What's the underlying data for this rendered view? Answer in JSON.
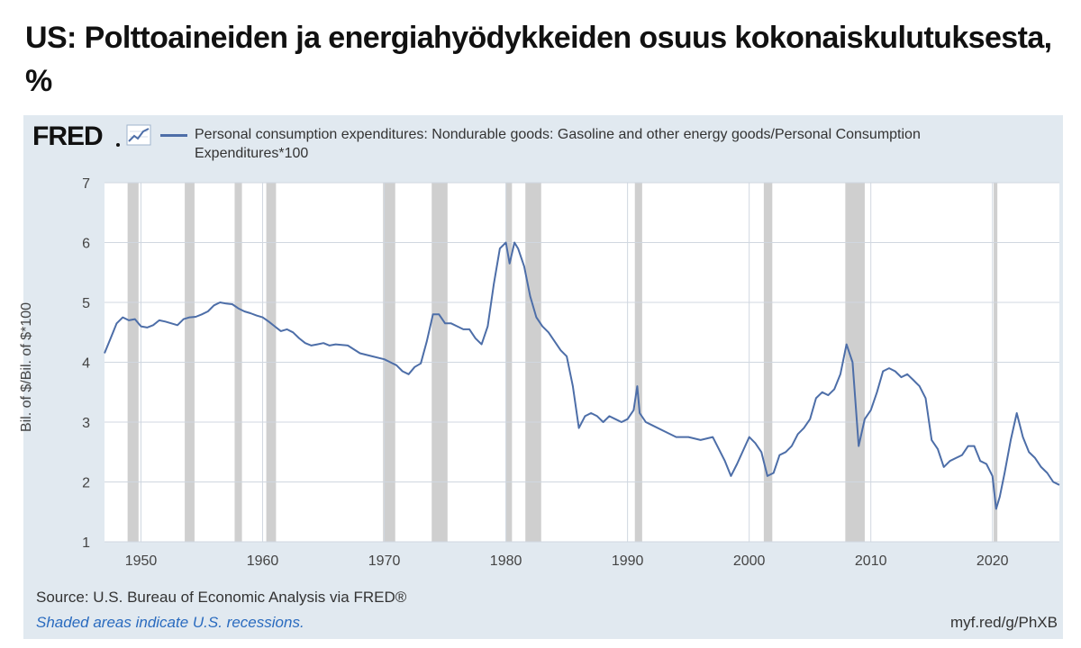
{
  "headline": "US: Polttoaineiden ja energiahyödykkeiden osuus kokonaiskulutuksesta, %",
  "fred_logo": "FRED",
  "legend_label": "Personal consumption expenditures: Nondurable goods: Gasoline and other energy goods/Personal Consumption Expenditures*100",
  "source": "Source: U.S. Bureau of Economic Analysis via FRED®",
  "recession_note": "Shaded areas indicate U.S. recessions.",
  "short_url": "myf.red/g/PhXB",
  "colors": {
    "series": "#4d6ea8",
    "panel_background": "#e1e9f0",
    "plot_background": "#ffffff",
    "recession_shade": "#cfcfcf",
    "gridline": "#d0d7e0",
    "recession_note": "#2a6bbf"
  },
  "icon": "line-chart-icon",
  "chart_data": {
    "type": "line",
    "xlabel": "",
    "ylabel": "Bil. of $/Bil. of $*100",
    "xlim": [
      1947.0,
      2025.5
    ],
    "ylim": [
      1,
      7
    ],
    "x_ticks": [
      1950,
      1960,
      1970,
      1980,
      1990,
      2000,
      2010,
      2020
    ],
    "y_ticks": [
      1,
      2,
      3,
      4,
      5,
      6,
      7
    ],
    "grid": true,
    "legend_position": "top",
    "recessions": [
      [
        1948.9,
        1949.8
      ],
      [
        1953.6,
        1954.4
      ],
      [
        1957.7,
        1958.3
      ],
      [
        1960.3,
        1961.1
      ],
      [
        1969.9,
        1970.9
      ],
      [
        1973.9,
        1975.2
      ],
      [
        1980.0,
        1980.5
      ],
      [
        1981.6,
        1982.9
      ],
      [
        1990.6,
        1991.2
      ],
      [
        2001.2,
        2001.9
      ],
      [
        2007.9,
        2009.5
      ],
      [
        2020.1,
        2020.4
      ]
    ],
    "series": [
      {
        "name": "Personal consumption expenditures: Nondurable goods: Gasoline and other energy goods/Personal Consumption Expenditures*100",
        "x": [
          1947.0,
          1947.5,
          1948.0,
          1948.5,
          1949.0,
          1949.5,
          1950.0,
          1950.5,
          1951.0,
          1951.5,
          1952.0,
          1952.5,
          1953.0,
          1953.5,
          1954.0,
          1954.5,
          1955.0,
          1955.5,
          1956.0,
          1956.5,
          1957.0,
          1957.5,
          1958.0,
          1958.5,
          1959.0,
          1959.5,
          1960.0,
          1960.5,
          1961.0,
          1961.5,
          1962.0,
          1962.5,
          1963.0,
          1963.5,
          1964.0,
          1964.5,
          1965.0,
          1965.5,
          1966.0,
          1967.0,
          1968.0,
          1969.0,
          1970.0,
          1970.5,
          1971.0,
          1971.5,
          1972.0,
          1972.5,
          1973.0,
          1973.5,
          1974.0,
          1974.5,
          1975.0,
          1975.5,
          1976.0,
          1976.5,
          1977.0,
          1977.5,
          1978.0,
          1978.5,
          1979.0,
          1979.5,
          1980.0,
          1980.3,
          1980.7,
          1981.0,
          1981.5,
          1982.0,
          1982.5,
          1983.0,
          1983.5,
          1984.0,
          1984.5,
          1985.0,
          1985.5,
          1986.0,
          1986.5,
          1987.0,
          1987.5,
          1988.0,
          1988.5,
          1989.0,
          1989.5,
          1990.0,
          1990.5,
          1990.8,
          1991.0,
          1991.5,
          1992.0,
          1993.0,
          1994.0,
          1995.0,
          1996.0,
          1997.0,
          1998.0,
          1998.5,
          1999.0,
          2000.0,
          2000.5,
          2001.0,
          2001.5,
          2002.0,
          2002.5,
          2003.0,
          2003.5,
          2004.0,
          2004.5,
          2005.0,
          2005.5,
          2006.0,
          2006.5,
          2007.0,
          2007.5,
          2008.0,
          2008.5,
          2009.0,
          2009.5,
          2010.0,
          2010.5,
          2011.0,
          2011.5,
          2012.0,
          2012.5,
          2013.0,
          2013.5,
          2014.0,
          2014.5,
          2015.0,
          2015.5,
          2016.0,
          2016.5,
          2017.0,
          2017.5,
          2018.0,
          2018.5,
          2019.0,
          2019.5,
          2020.0,
          2020.3,
          2020.6,
          2021.0,
          2021.5,
          2022.0,
          2022.5,
          2023.0,
          2023.5,
          2024.0,
          2024.5,
          2025.0,
          2025.5
        ],
        "values": [
          4.15,
          4.4,
          4.65,
          4.75,
          4.7,
          4.72,
          4.6,
          4.58,
          4.62,
          4.7,
          4.68,
          4.65,
          4.62,
          4.72,
          4.75,
          4.76,
          4.8,
          4.85,
          4.95,
          5.0,
          4.98,
          4.97,
          4.9,
          4.85,
          4.82,
          4.78,
          4.75,
          4.68,
          4.6,
          4.52,
          4.55,
          4.5,
          4.4,
          4.32,
          4.28,
          4.3,
          4.32,
          4.28,
          4.3,
          4.28,
          4.15,
          4.1,
          4.05,
          4.0,
          3.95,
          3.85,
          3.8,
          3.92,
          3.98,
          4.35,
          4.8,
          4.8,
          4.65,
          4.65,
          4.6,
          4.55,
          4.55,
          4.4,
          4.3,
          4.6,
          5.3,
          5.9,
          6.0,
          5.65,
          6.0,
          5.9,
          5.6,
          5.1,
          4.75,
          4.6,
          4.5,
          4.35,
          4.2,
          4.1,
          3.6,
          2.9,
          3.1,
          3.15,
          3.1,
          3.0,
          3.1,
          3.05,
          3.0,
          3.05,
          3.2,
          3.6,
          3.15,
          3.0,
          2.95,
          2.85,
          2.75,
          2.75,
          2.7,
          2.75,
          2.35,
          2.1,
          2.3,
          2.75,
          2.65,
          2.5,
          2.1,
          2.15,
          2.45,
          2.5,
          2.6,
          2.8,
          2.9,
          3.05,
          3.4,
          3.5,
          3.45,
          3.55,
          3.8,
          4.3,
          4.0,
          2.6,
          3.05,
          3.2,
          3.5,
          3.85,
          3.9,
          3.85,
          3.75,
          3.8,
          3.7,
          3.6,
          3.4,
          2.7,
          2.55,
          2.25,
          2.35,
          2.4,
          2.45,
          2.6,
          2.6,
          2.35,
          2.3,
          2.1,
          1.55,
          1.75,
          2.15,
          2.7,
          3.15,
          2.75,
          2.5,
          2.4,
          2.25,
          2.15,
          2.0,
          1.95
        ]
      }
    ]
  }
}
